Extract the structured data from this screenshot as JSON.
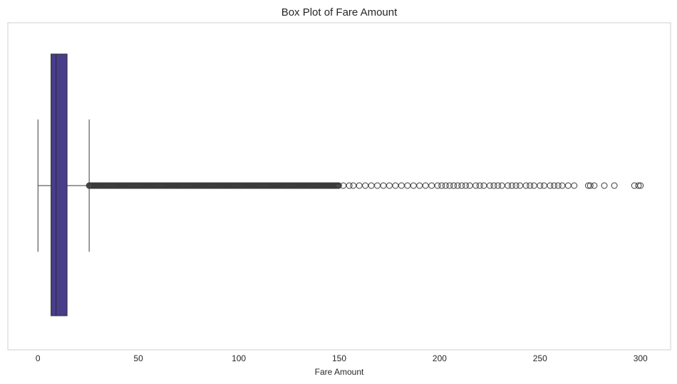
{
  "chart_data": {
    "type": "box",
    "orientation": "horizontal",
    "title": "Box Plot of Fare Amount",
    "xlabel": "Fare Amount",
    "ylabel": "",
    "xlim": [
      -15,
      315
    ],
    "xticks": [
      0,
      50,
      100,
      150,
      200,
      250,
      300
    ],
    "grid": false,
    "box": {
      "whisker_low": 0,
      "q1": 6.5,
      "median": 9.0,
      "q3": 14.5,
      "whisker_high": 25.5,
      "color": "#483d8b"
    },
    "outliers": {
      "dense_range": [
        25.5,
        150
      ],
      "sparse": [
        152,
        155,
        157,
        160,
        163,
        166,
        169,
        172,
        175,
        178,
        181,
        184,
        187,
        190,
        193,
        196,
        199,
        201,
        203,
        205,
        207,
        209,
        211,
        213,
        215,
        218,
        220,
        222,
        225,
        227,
        229,
        231,
        234,
        236,
        238,
        240,
        243,
        245,
        247,
        250,
        252,
        255,
        257,
        259,
        261,
        264,
        267,
        274,
        275,
        277,
        282,
        287,
        297,
        299,
        300
      ],
      "marker": "open-circle"
    }
  }
}
